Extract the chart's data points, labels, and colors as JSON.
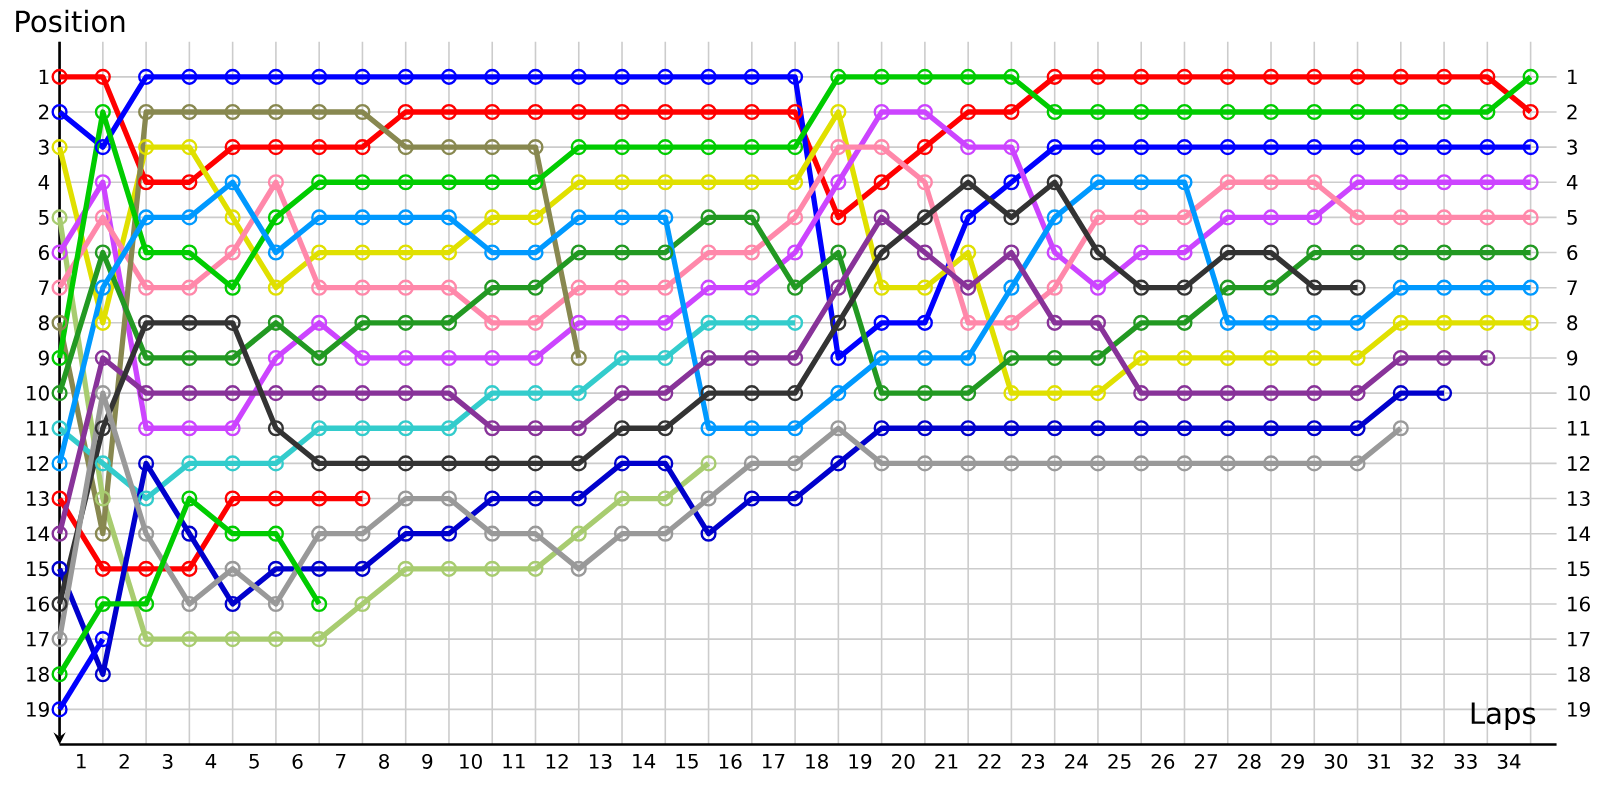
{
  "chart_data": {
    "type": "line",
    "xlabel": "Laps",
    "ylabel": "Position",
    "x": [
      0.5,
      1.5,
      2.5,
      3.5,
      4.5,
      5.5,
      6.5,
      7.5,
      8.5,
      9.5,
      10.5,
      11.5,
      12.5,
      13.5,
      14.5,
      15.5,
      16.5,
      17.5,
      18.5,
      19.5,
      20.5,
      21.5,
      22.5,
      23.5,
      24.5,
      25.5,
      26.5,
      27.5,
      28.5,
      29.5,
      30.5,
      31.5,
      32.5,
      33.5,
      34.5
    ],
    "xlim": [
      0.5,
      35.1
    ],
    "ylim": [
      20,
      0
    ],
    "y2lim": [
      20,
      0
    ],
    "xticks": [
      1,
      2,
      3,
      4,
      5,
      6,
      7,
      8,
      9,
      10,
      11,
      12,
      13,
      14,
      15,
      16,
      17,
      18,
      19,
      20,
      21,
      22,
      23,
      24,
      25,
      26,
      27,
      28,
      29,
      30,
      31,
      32,
      33,
      34
    ],
    "yticks": [
      1,
      2,
      3,
      4,
      5,
      6,
      7,
      8,
      9,
      10,
      11,
      12,
      13,
      14,
      15,
      16,
      17,
      18,
      19
    ],
    "y2ticks": [
      1,
      2,
      3,
      4,
      5,
      6,
      7,
      8,
      9,
      10,
      11,
      12,
      13,
      14,
      15,
      16,
      17,
      18,
      19
    ],
    "grid": true,
    "marker": "circle",
    "line_style": "solid",
    "series": [
      {
        "color": "#ff0000",
        "values": [
          1,
          1,
          4,
          4,
          3,
          3,
          3,
          3,
          2,
          2,
          2,
          2,
          2,
          2,
          2,
          2,
          2,
          2,
          5,
          4,
          3,
          2,
          2,
          1,
          1,
          1,
          1,
          1,
          1,
          1,
          1,
          1,
          1,
          1,
          2
        ]
      },
      {
        "color": "#0000ff",
        "values": [
          2,
          3,
          1,
          1,
          1,
          1,
          1,
          1,
          1,
          1,
          1,
          1,
          1,
          1,
          1,
          1,
          1,
          1,
          9,
          8,
          8,
          5,
          4,
          3,
          3,
          3,
          3,
          3,
          3,
          3,
          3,
          3,
          3,
          3,
          3
        ]
      },
      {
        "color": "#e0e000",
        "values": [
          3,
          8,
          3,
          3,
          5,
          7,
          6,
          6,
          6,
          6,
          5,
          5,
          4,
          4,
          4,
          4,
          4,
          4,
          2,
          7,
          7,
          6,
          10,
          10,
          10,
          9,
          9,
          9,
          9,
          9,
          9,
          8,
          8,
          8,
          8
        ]
      },
      {
        "color": "#a8cc70",
        "values": [
          5,
          13,
          17,
          17,
          17,
          17,
          17,
          16,
          15,
          15,
          15,
          15,
          14,
          13,
          13,
          12,
          null,
          null,
          null,
          null,
          null,
          null,
          null,
          null,
          null,
          null,
          null,
          null,
          null,
          null,
          null,
          null,
          null,
          null,
          null
        ]
      },
      {
        "color": "#cc44ff",
        "values": [
          6,
          4,
          11,
          11,
          11,
          9,
          8,
          9,
          9,
          9,
          9,
          9,
          8,
          8,
          8,
          7,
          7,
          6,
          4,
          2,
          2,
          3,
          3,
          6,
          7,
          6,
          6,
          5,
          5,
          5,
          4,
          4,
          4,
          4,
          4
        ]
      },
      {
        "color": "#ff88aa",
        "values": [
          7,
          5,
          7,
          7,
          6,
          4,
          7,
          7,
          7,
          7,
          8,
          8,
          7,
          7,
          7,
          6,
          6,
          5,
          3,
          3,
          4,
          8,
          8,
          7,
          5,
          5,
          5,
          4,
          4,
          4,
          5,
          5,
          5,
          5,
          5
        ]
      },
      {
        "color": "#888850",
        "values": [
          8,
          14,
          2,
          2,
          2,
          2,
          2,
          2,
          3,
          3,
          3,
          3,
          9,
          null,
          null,
          null,
          null,
          null,
          null,
          null,
          null,
          null,
          null,
          null,
          null,
          null,
          null,
          null,
          null,
          null,
          null,
          null,
          null,
          null,
          null
        ]
      },
      {
        "color": "#00cc00",
        "values": [
          9,
          2,
          6,
          6,
          7,
          5,
          4,
          4,
          4,
          4,
          4,
          4,
          3,
          3,
          3,
          3,
          3,
          3,
          1,
          1,
          1,
          1,
          1,
          2,
          2,
          2,
          2,
          2,
          2,
          2,
          2,
          2,
          2,
          2,
          1
        ]
      },
      {
        "color": "#229922",
        "values": [
          10,
          6,
          9,
          9,
          9,
          8,
          9,
          8,
          8,
          8,
          7,
          7,
          6,
          6,
          6,
          5,
          5,
          7,
          6,
          10,
          10,
          10,
          9,
          9,
          9,
          8,
          8,
          7,
          7,
          6,
          6,
          6,
          6,
          6,
          6
        ]
      },
      {
        "color": "#33cccc",
        "values": [
          11,
          12,
          13,
          12,
          12,
          12,
          11,
          11,
          11,
          11,
          10,
          10,
          10,
          9,
          9,
          8,
          8,
          8,
          null,
          null,
          null,
          null,
          null,
          null,
          null,
          null,
          null,
          null,
          null,
          null,
          null,
          null,
          null,
          null,
          null
        ]
      },
      {
        "color": "#0099ff",
        "values": [
          12,
          7,
          5,
          5,
          4,
          6,
          5,
          5,
          5,
          5,
          6,
          6,
          5,
          5,
          5,
          11,
          11,
          11,
          10,
          9,
          9,
          9,
          7,
          5,
          4,
          4,
          4,
          8,
          8,
          8,
          8,
          7,
          7,
          7,
          7
        ]
      },
      {
        "color": "#ff0000",
        "values": [
          13,
          15,
          15,
          15,
          13,
          13,
          13,
          13,
          null,
          null,
          null,
          null,
          null,
          null,
          null,
          null,
          null,
          null,
          null,
          null,
          null,
          null,
          null,
          null,
          null,
          null,
          null,
          null,
          null,
          null,
          null,
          null,
          null,
          null,
          null
        ]
      },
      {
        "color": "#883399",
        "values": [
          14,
          9,
          10,
          10,
          10,
          10,
          10,
          10,
          10,
          10,
          11,
          11,
          11,
          10,
          10,
          9,
          9,
          9,
          7,
          5,
          6,
          7,
          6,
          8,
          8,
          10,
          10,
          10,
          10,
          10,
          10,
          9,
          9,
          9,
          null
        ]
      },
      {
        "color": "#0000cc",
        "values": [
          15,
          18,
          12,
          14,
          16,
          15,
          15,
          15,
          14,
          14,
          13,
          13,
          13,
          12,
          12,
          14,
          13,
          13,
          12,
          11,
          11,
          11,
          11,
          11,
          11,
          11,
          11,
          11,
          11,
          11,
          11,
          10,
          10,
          null,
          null
        ]
      },
      {
        "color": "#333333",
        "values": [
          16,
          11,
          8,
          8,
          8,
          11,
          12,
          12,
          12,
          12,
          12,
          12,
          12,
          11,
          11,
          10,
          10,
          10,
          8,
          6,
          5,
          4,
          5,
          4,
          6,
          7,
          7,
          6,
          6,
          7,
          7,
          null,
          null,
          null,
          null
        ]
      },
      {
        "color": "#999999",
        "values": [
          17,
          10,
          14,
          16,
          15,
          16,
          14,
          14,
          13,
          13,
          14,
          14,
          15,
          14,
          14,
          13,
          12,
          12,
          11,
          12,
          12,
          12,
          12,
          12,
          12,
          12,
          12,
          12,
          12,
          12,
          12,
          11,
          null,
          null,
          null
        ]
      },
      {
        "color": "#00cc00",
        "values": [
          18,
          16,
          16,
          13,
          14,
          14,
          16,
          null,
          null,
          null,
          null,
          null,
          null,
          null,
          null,
          null,
          null,
          null,
          null,
          null,
          null,
          null,
          null,
          null,
          null,
          null,
          null,
          null,
          null,
          null,
          null,
          null,
          null,
          null,
          null
        ]
      },
      {
        "color": "#0000ff",
        "values": [
          19,
          17,
          null,
          null,
          null,
          null,
          null,
          null,
          null,
          null,
          null,
          null,
          null,
          null,
          null,
          null,
          null,
          null,
          null,
          null,
          null,
          null,
          null,
          null,
          null,
          null,
          null,
          null,
          null,
          null,
          null,
          null,
          null,
          null,
          null
        ]
      }
    ]
  }
}
